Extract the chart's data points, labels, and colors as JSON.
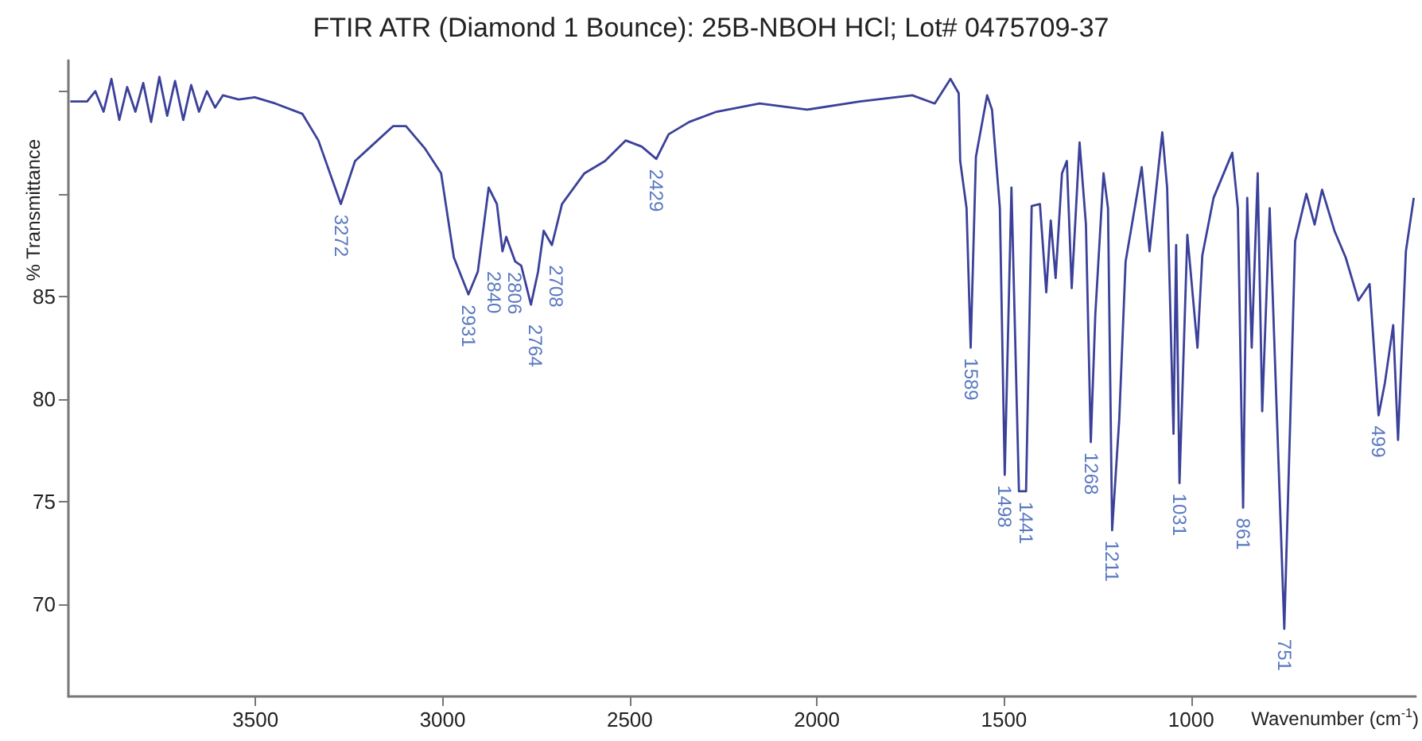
{
  "chart_data": {
    "type": "line",
    "title": "FTIR ATR (Diamond 1 Bounce): 25B-NBOH HCl; Lot# 0475709-37",
    "xlabel": "Wavenumber (cm$^{-1}$)",
    "ylabel": "% Transmittance",
    "xlim": [
      4000,
      400
    ],
    "xticks": [
      3500,
      3000,
      2500,
      2000,
      1500,
      1000
    ],
    "ylim": [
      65.5,
      96.5
    ],
    "yticks": [
      70,
      75,
      80,
      85,
      {
        "value": 90,
        "label": null
      },
      {
        "value": 95,
        "label": null
      }
    ],
    "x": [
      3995,
      3950,
      3928,
      3906,
      3885,
      3864,
      3843,
      3821,
      3800,
      3779,
      3757,
      3736,
      3715,
      3693,
      3672,
      3651,
      3630,
      3608,
      3587,
      3545,
      3502,
      3447,
      3375,
      3332,
      3272,
      3234,
      3192,
      3132,
      3098,
      3047,
      3004,
      2970,
      2931,
      2906,
      2877,
      2855,
      2840,
      2830,
      2806,
      2790,
      2764,
      2745,
      2730,
      2708,
      2681,
      2621,
      2566,
      2511,
      2468,
      2429,
      2396,
      2341,
      2268,
      2153,
      2026,
      1885,
      1745,
      1685,
      1643,
      1621,
      1617,
      1600,
      1589,
      1575,
      1545,
      1532,
      1511,
      1498,
      1480,
      1460,
      1441,
      1426,
      1404,
      1387,
      1375,
      1362,
      1345,
      1332,
      1319,
      1298,
      1281,
      1268,
      1256,
      1234,
      1222,
      1211,
      1192,
      1175,
      1132,
      1111,
      1077,
      1064,
      1047,
      1040,
      1031,
      1010,
      983,
      970,
      940,
      890,
      875,
      861,
      850,
      838,
      822,
      810,
      790,
      751,
      735,
      722,
      692,
      670,
      650,
      617,
      587,
      553,
      523,
      499,
      482,
      460,
      447,
      426,
      405
    ],
    "series": [
      {
        "color": "#3b4199",
        "values": [
          94.5,
          94.5,
          95.0,
          94.0,
          95.6,
          93.6,
          95.2,
          94.0,
          95.4,
          93.5,
          95.7,
          93.8,
          95.5,
          93.6,
          95.3,
          94.0,
          95.0,
          94.2,
          94.8,
          94.6,
          94.7,
          94.4,
          93.9,
          92.6,
          89.5,
          91.6,
          92.3,
          93.3,
          93.3,
          92.2,
          91.0,
          86.9,
          85.1,
          86.2,
          90.3,
          89.5,
          87.2,
          87.9,
          86.7,
          86.5,
          84.6,
          86.2,
          88.2,
          87.5,
          89.5,
          91.0,
          91.6,
          92.6,
          92.3,
          91.7,
          92.9,
          93.5,
          94.0,
          94.4,
          94.1,
          94.5,
          94.8,
          94.4,
          95.6,
          94.9,
          91.6,
          89.3,
          82.5,
          91.8,
          94.8,
          94.1,
          89.3,
          76.3,
          90.3,
          75.5,
          75.5,
          89.4,
          89.5,
          85.2,
          88.7,
          85.9,
          91.0,
          91.6,
          85.4,
          92.5,
          88.5,
          77.9,
          84.1,
          91.0,
          89.3,
          73.6,
          79.0,
          86.7,
          91.3,
          87.2,
          93.0,
          90.3,
          78.3,
          87.5,
          75.9,
          88.0,
          82.5,
          87.0,
          89.8,
          92.0,
          89.3,
          74.7,
          89.8,
          82.5,
          91.0,
          79.4,
          89.3,
          68.8,
          79.0,
          87.7,
          90.0,
          88.5,
          90.2,
          88.2,
          86.9,
          84.8,
          85.6,
          79.2,
          80.8,
          83.6,
          78.0,
          87.2,
          89.8
        ]
      }
    ],
    "annotations": [
      {
        "text": "3272",
        "x": 3272,
        "y": 89.5
      },
      {
        "text": "2931",
        "x": 2931,
        "y": 85.1
      },
      {
        "text": "2840",
        "x": 2840,
        "y": 87.2
      },
      {
        "text": "2806",
        "x": 2806,
        "y": 86.7
      },
      {
        "text": "2764",
        "x": 2764,
        "y": 84.6
      },
      {
        "text": "2708",
        "x": 2708,
        "y": 87.5
      },
      {
        "text": "2429",
        "x": 2429,
        "y": 91.7
      },
      {
        "text": "1589",
        "x": 1589,
        "y": 82.5
      },
      {
        "text": "1498",
        "x": 1498,
        "y": 76.3
      },
      {
        "text": "1441",
        "x": 1441,
        "y": 75.5
      },
      {
        "text": "1268",
        "x": 1268,
        "y": 77.9
      },
      {
        "text": "1211",
        "x": 1211,
        "y": 73.6
      },
      {
        "text": "1031",
        "x": 1031,
        "y": 75.9
      },
      {
        "text": "861",
        "x": 861,
        "y": 74.7
      },
      {
        "text": "751",
        "x": 751,
        "y": 68.8
      },
      {
        "text": "499",
        "x": 499,
        "y": 79.2
      }
    ]
  }
}
